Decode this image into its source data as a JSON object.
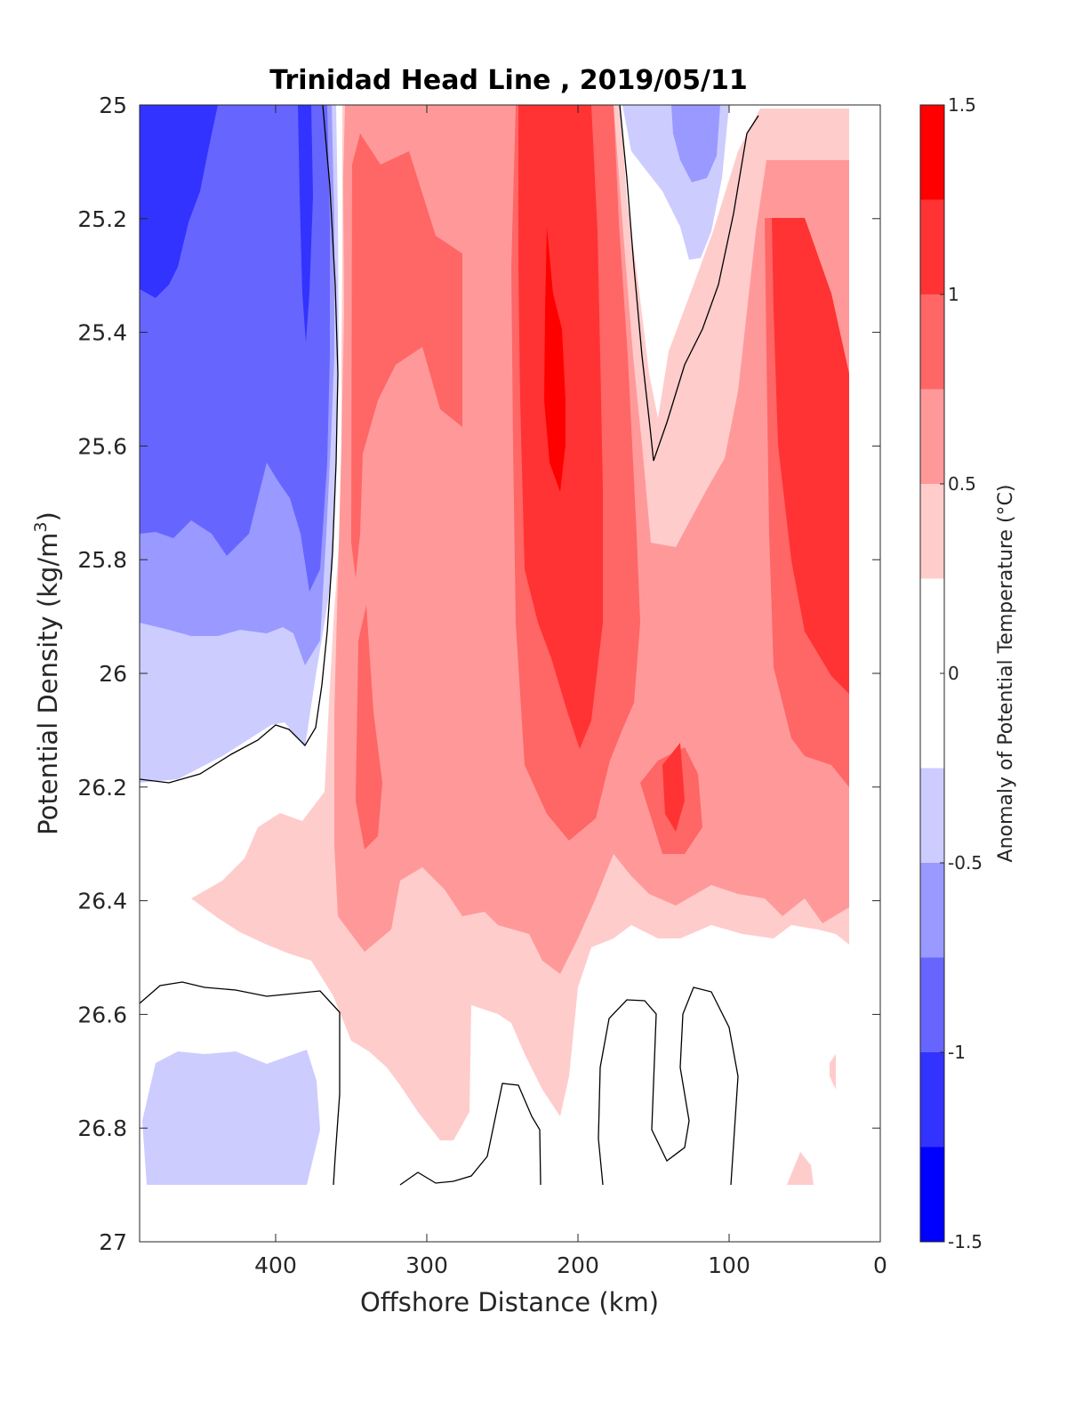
{
  "chart_data": {
    "type": "heatmap",
    "subtype": "filled-contour",
    "title": "Trinidad Head Line , 2019/05/11",
    "xlabel": "Offshore Distance (km)",
    "ylabel_main": "Potential Density (kg/m",
    "ylabel_sup": "3",
    "ylabel_close": ")",
    "xlim": [
      490,
      0
    ],
    "x_reversed": true,
    "ylim": [
      25,
      27
    ],
    "y_reversed": true,
    "x_ticks": [
      "400",
      "300",
      "200",
      "100",
      "0"
    ],
    "y_ticks": [
      "25",
      "25.2",
      "25.4",
      "25.6",
      "25.8",
      "26",
      "26.2",
      "26.4",
      "26.6",
      "26.8",
      "27"
    ],
    "colorbar": {
      "label": "Anomaly of Potential Temperature (°C)",
      "range": [
        -1.5,
        1.5
      ],
      "ticks": [
        "1.5",
        "1",
        "0.5",
        "0",
        "-0.5",
        "-1",
        "-1.5"
      ],
      "levels": [
        -1.5,
        -1.25,
        -1.0,
        -0.75,
        -0.5,
        -0.25,
        0.25,
        0.5,
        0.75,
        1.0,
        1.25,
        1.5
      ],
      "colors": [
        "#0000ff",
        "#3333ff",
        "#6666ff",
        "#9999ff",
        "#ccccff",
        "#ffffff",
        "#ffcccc",
        "#ff9999",
        "#ff6666",
        "#ff3333",
        "#ff0000"
      ]
    },
    "zero_contour": "black line",
    "data_coverage": {
      "x": [
        20,
        490
      ],
      "y": [
        25,
        26.9
      ]
    }
  }
}
